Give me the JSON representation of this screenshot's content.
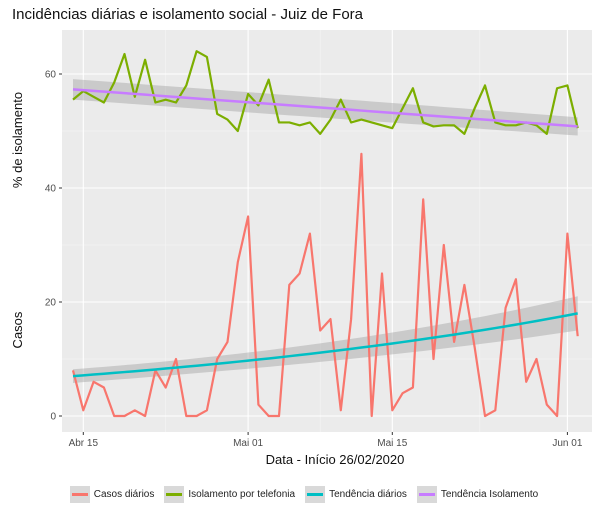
{
  "chart_data": {
    "type": "line",
    "title": "Incidências diárias e isolamento social - Juiz de Fora",
    "xlabel": "Data - Início 26/02/2020",
    "ylabel_top": "% de isolamento",
    "ylabel_bottom": "Casos",
    "x_start": "2020-04-14",
    "x_ticks": [
      {
        "label": "Abr 15",
        "day": 1
      },
      {
        "label": "Mai 01",
        "day": 17
      },
      {
        "label": "Mai 15",
        "day": 31
      },
      {
        "label": "Jun 01",
        "day": 48
      }
    ],
    "y_ticks": [
      0,
      20,
      40,
      60
    ],
    "ylim": [
      -3,
      67
    ],
    "series": [
      {
        "name": "Casos diários",
        "color": "#f8766d",
        "values": [
          8,
          1,
          6,
          5,
          0,
          0,
          1,
          0,
          8,
          5,
          10,
          0,
          0,
          1,
          10,
          13,
          27,
          35,
          2,
          0,
          0,
          23,
          25,
          32,
          15,
          17,
          1,
          17,
          46,
          0,
          25,
          1,
          4,
          5,
          38,
          10,
          30,
          13,
          23,
          12,
          0,
          1,
          19,
          24,
          6,
          10,
          2,
          0,
          32,
          14
        ]
      },
      {
        "name": "Isolamento por telefonia",
        "color": "#7cae00",
        "values": [
          55.5,
          57,
          56,
          55,
          58.5,
          63.5,
          56,
          62.5,
          55,
          55.5,
          55,
          58,
          64,
          63,
          53,
          52,
          50,
          56.5,
          54.5,
          59,
          51.5,
          51.5,
          51,
          51.5,
          49.5,
          52,
          55.5,
          51.5,
          52,
          51.5,
          51,
          50.5,
          54,
          57.5,
          51.5,
          50.8,
          51,
          51,
          49.5,
          54,
          58,
          51.5,
          51,
          51,
          51.5,
          51,
          49.5,
          57.5,
          58,
          50.5
        ]
      },
      {
        "name": "Tendência diários",
        "color": "#00bfc4",
        "start": 7,
        "end": 18,
        "ci_start": 1.2,
        "ci_end": 3
      },
      {
        "name": "Tendência Isolamento",
        "color": "#c77cff",
        "start": 57.3,
        "end": 50.8,
        "ci_start": 1.8,
        "ci_end": 1.6
      }
    ]
  }
}
